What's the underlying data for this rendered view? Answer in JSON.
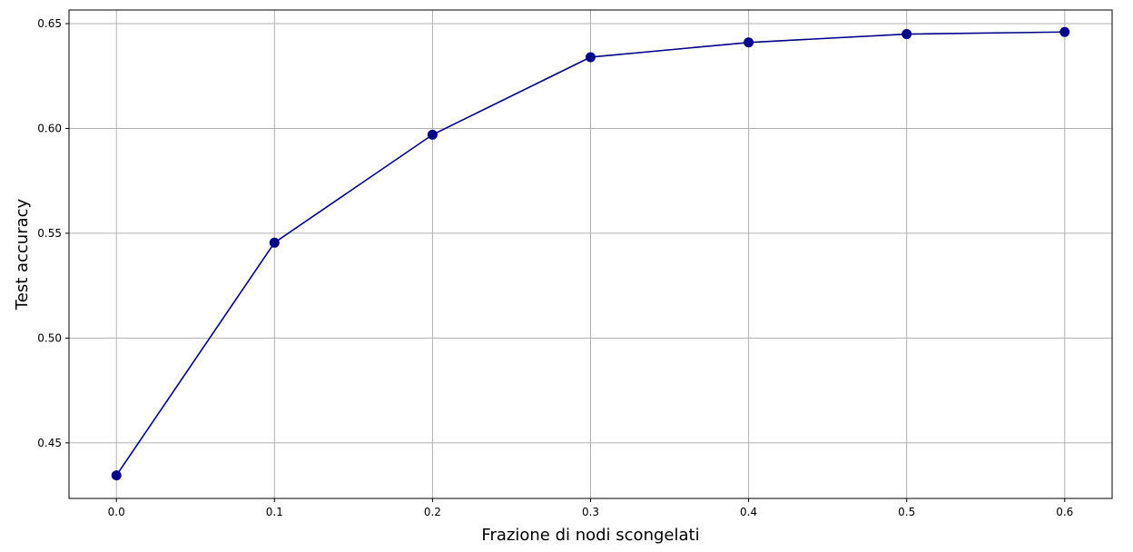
{
  "chart_data": {
    "type": "line",
    "title": "",
    "xlabel": "Frazione di nodi scongelati",
    "ylabel": "Test accuracy",
    "x": [
      0.0,
      0.1,
      0.2,
      0.3,
      0.4,
      0.5,
      0.6
    ],
    "series": [
      {
        "values": [
          0.4345,
          0.5455,
          0.597,
          0.634,
          0.641,
          0.645,
          0.646
        ]
      }
    ],
    "xlim": [
      -0.03,
      0.63
    ],
    "ylim": [
      0.4235,
      0.6565
    ],
    "xticks": [
      "0.0",
      "0.1",
      "0.2",
      "0.3",
      "0.4",
      "0.5",
      "0.6"
    ],
    "xtick_values": [
      0.0,
      0.1,
      0.2,
      0.3,
      0.4,
      0.5,
      0.6
    ],
    "yticks": [
      "0.45",
      "0.50",
      "0.55",
      "0.60",
      "0.65"
    ],
    "ytick_values": [
      0.45,
      0.5,
      0.55,
      0.6,
      0.65
    ],
    "grid": true,
    "colors": {
      "line": "#00008b",
      "marker": "#00008b",
      "grid": "#b0b0b0"
    }
  }
}
